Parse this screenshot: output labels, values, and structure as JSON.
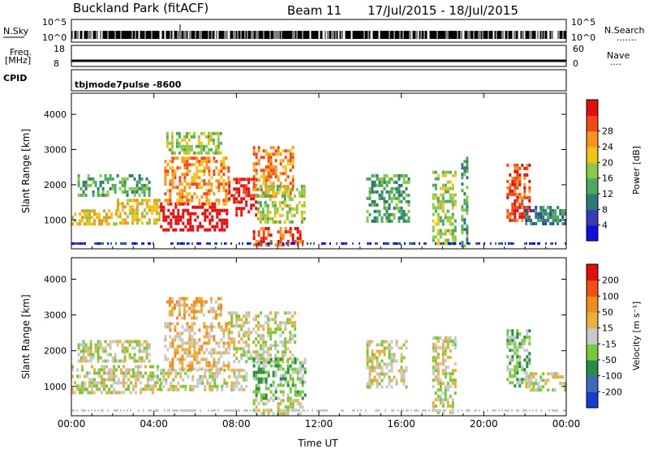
{
  "header": {
    "station": "Buckland Park (fitACF)",
    "beam": "Beam 11",
    "date_range": "17/Jul/2015 - 18/Jul/2015"
  },
  "top_panels": {
    "nsky_label": "N.Sky",
    "nsky_ticks": [
      "10^5",
      "10^0"
    ],
    "nsearch_label": "N.Search",
    "nsearch_ticks": [
      "10^5",
      "10^0"
    ],
    "nsearch_marker": ".......",
    "freq_label": "Freq.",
    "freq_unit": "[MHz]",
    "freq_ticks": [
      "18",
      "8"
    ],
    "nave_label": "Nave",
    "nave_ticks": [
      "60",
      "0"
    ],
    "nave_marker": "....",
    "cpid_label": "CPID",
    "cpid_value": "tbjmode7pulse  -8600"
  },
  "chart_data": [
    {
      "type": "heatmap",
      "quantity": "Power",
      "ylabel": "Slant Range [km]",
      "ylim": [
        180,
        4600
      ],
      "yticks": [
        1000,
        2000,
        3000,
        4000
      ],
      "xlim": [
        0,
        24
      ],
      "xticks": [
        "00:00",
        "04:00",
        "08:00",
        "12:00",
        "16:00",
        "20:00",
        "00:00"
      ],
      "colorbar": {
        "label": "Power [dB]",
        "ticks": [
          "4",
          "8",
          "12",
          "16",
          "20",
          "24",
          "28"
        ],
        "colors": [
          "#1010dc",
          "#3a3ab8",
          "#2e7a74",
          "#4fa85f",
          "#8cc84a",
          "#f2c218",
          "#f79420",
          "#f04818",
          "#e01010"
        ]
      },
      "echo_regions": [
        {
          "t0": 0.0,
          "t1": 2.2,
          "r0": 850,
          "r1": 1300,
          "level": 5
        },
        {
          "t0": 2.2,
          "t1": 4.3,
          "r0": 950,
          "r1": 1600,
          "level": 5
        },
        {
          "t0": 0.3,
          "t1": 3.8,
          "r0": 1700,
          "r1": 2300,
          "level": 3
        },
        {
          "t0": 4.3,
          "t1": 7.6,
          "r0": 700,
          "r1": 1500,
          "level": 9
        },
        {
          "t0": 4.5,
          "t1": 7.6,
          "r0": 1500,
          "r1": 2800,
          "level": 6
        },
        {
          "t0": 4.6,
          "t1": 7.2,
          "r0": 2900,
          "r1": 3500,
          "level": 4
        },
        {
          "t0": 7.6,
          "t1": 9.0,
          "r0": 1100,
          "r1": 2200,
          "level": 8
        },
        {
          "t0": 8.8,
          "t1": 10.8,
          "r0": 1700,
          "r1": 3100,
          "level": 6
        },
        {
          "t0": 8.8,
          "t1": 11.2,
          "r0": 250,
          "r1": 800,
          "level": 7
        },
        {
          "t0": 9.0,
          "t1": 11.3,
          "r0": 900,
          "r1": 2000,
          "level": 4
        },
        {
          "t0": 14.3,
          "t1": 16.4,
          "r0": 1000,
          "r1": 2300,
          "level": 3
        },
        {
          "t0": 17.5,
          "t1": 18.6,
          "r0": 300,
          "r1": 2400,
          "level": 4
        },
        {
          "t0": 18.9,
          "t1": 19.2,
          "r0": 300,
          "r1": 2800,
          "level": 3
        },
        {
          "t0": 21.1,
          "t1": 22.2,
          "r0": 1000,
          "r1": 2600,
          "level": 7
        },
        {
          "t0": 22.0,
          "t1": 24.0,
          "r0": 900,
          "r1": 1400,
          "level": 2
        }
      ]
    },
    {
      "type": "heatmap",
      "quantity": "Velocity",
      "ylabel": "Slant Range [km]",
      "ylim": [
        180,
        4600
      ],
      "yticks": [
        1000,
        2000,
        3000,
        4000
      ],
      "xlim": [
        0,
        24
      ],
      "xticks": [
        "00:00",
        "04:00",
        "08:00",
        "12:00",
        "16:00",
        "20:00",
        "00:00"
      ],
      "xlabel": "Time UT",
      "colorbar": {
        "label": "Velocity [m s⁻¹]",
        "ticks": [
          "200",
          "100",
          "50",
          "15",
          "-15",
          "-50",
          "-100",
          "-200"
        ],
        "colors": [
          "#1c3cd0",
          "#3c6cb8",
          "#2a8a4a",
          "#78c83c",
          "#c8c8c8",
          "#e8b040",
          "#f08c1c",
          "#f05010",
          "#e01010"
        ]
      },
      "echo_regions": [
        {
          "t0": 0.0,
          "t1": 4.3,
          "r0": 850,
          "r1": 1600,
          "level": 4
        },
        {
          "t0": 0.3,
          "t1": 3.8,
          "r0": 1700,
          "r1": 2300,
          "level": 4
        },
        {
          "t0": 4.3,
          "t1": 8.5,
          "r0": 900,
          "r1": 1500,
          "level": 4
        },
        {
          "t0": 4.5,
          "t1": 7.6,
          "r0": 1500,
          "r1": 2800,
          "level": 5
        },
        {
          "t0": 4.6,
          "t1": 7.2,
          "r0": 2900,
          "r1": 3500,
          "level": 5
        },
        {
          "t0": 7.6,
          "t1": 10.8,
          "r0": 1700,
          "r1": 3100,
          "level": 4
        },
        {
          "t0": 8.8,
          "t1": 11.3,
          "r0": 700,
          "r1": 1800,
          "level": 3
        },
        {
          "t0": 8.8,
          "t1": 11.2,
          "r0": 250,
          "r1": 650,
          "level": 4
        },
        {
          "t0": 14.3,
          "t1": 16.4,
          "r0": 1000,
          "r1": 2300,
          "level": 4
        },
        {
          "t0": 17.5,
          "t1": 18.6,
          "r0": 300,
          "r1": 2400,
          "level": 4
        },
        {
          "t0": 21.1,
          "t1": 22.2,
          "r0": 1000,
          "r1": 2600,
          "level": 3
        },
        {
          "t0": 22.0,
          "t1": 24.0,
          "r0": 900,
          "r1": 1400,
          "level": 4
        }
      ]
    }
  ]
}
